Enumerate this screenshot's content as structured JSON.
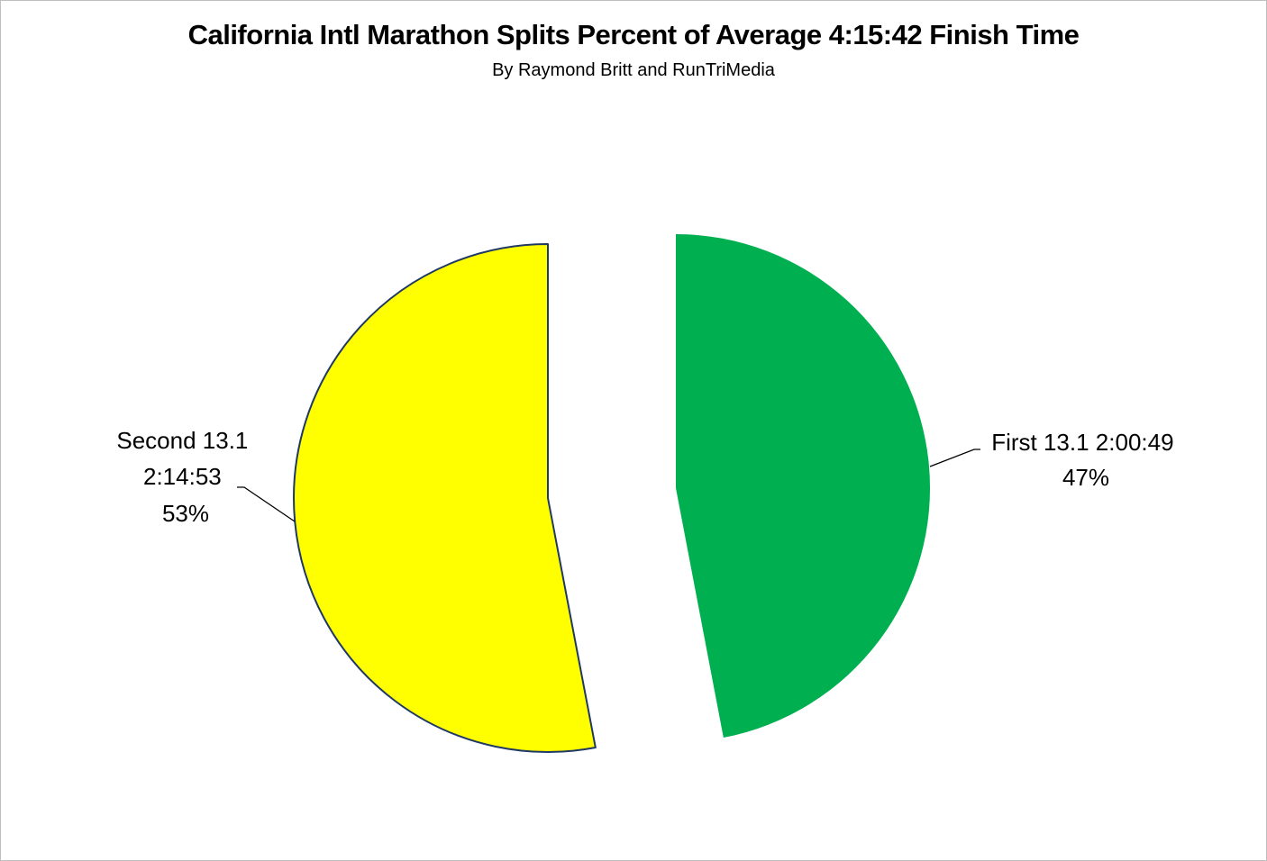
{
  "chart_data": {
    "type": "pie",
    "title": "California Intl Marathon Splits Percent of Average 4:15:42 Finish Time",
    "subtitle": "By Raymond Britt and RunTriMedia",
    "slices": [
      {
        "label_lines": [
          "First 13.1 2:00:49",
          "47%"
        ],
        "value": 47,
        "color": "#00b050"
      },
      {
        "label_lines": [
          "Second 13.1",
          "2:14:53",
          "53%"
        ],
        "value": 53,
        "color": "#ffff00"
      }
    ],
    "legend": "none"
  }
}
